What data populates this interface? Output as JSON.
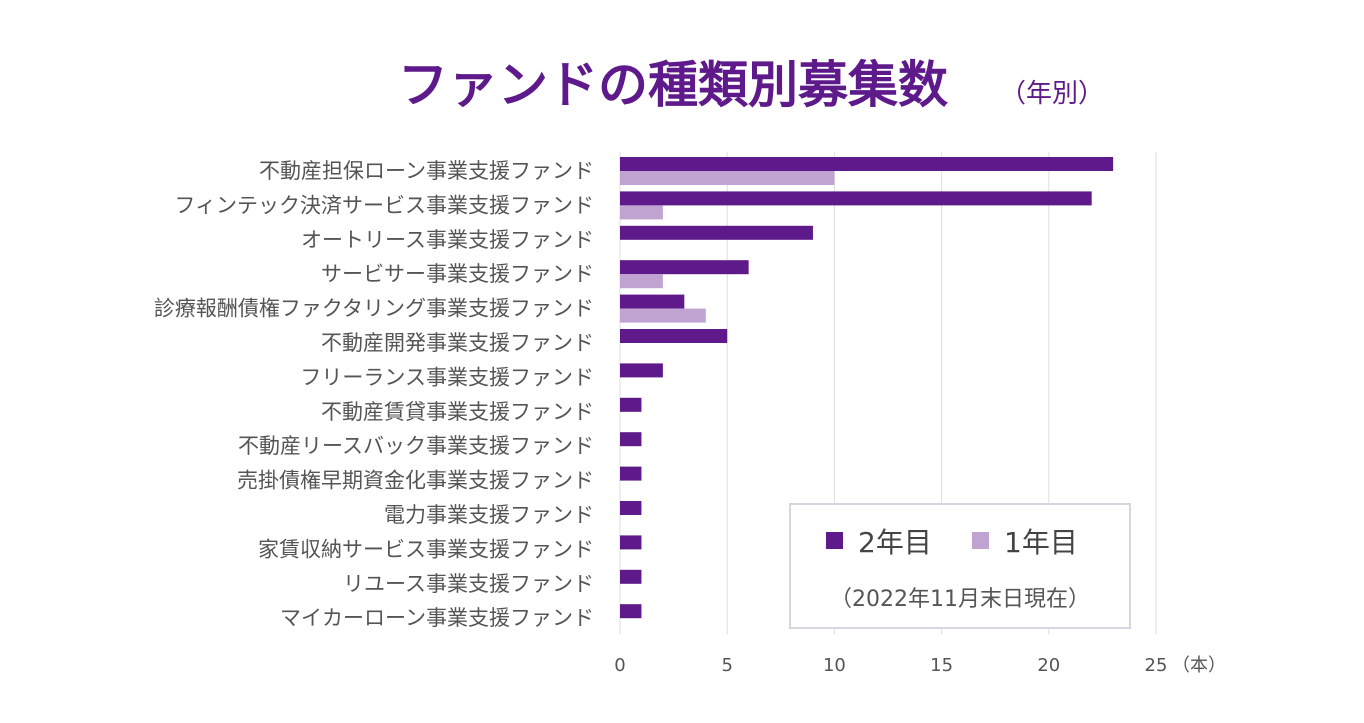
{
  "chart_data": {
    "type": "bar",
    "orientation": "horizontal",
    "title": "ファンドの種類別募集数",
    "subtitle": "（年別）",
    "categories": [
      "不動産担保ローン事業支援ファンド",
      "フィンテック決済サービス事業支援ファンド",
      "オートリース事業支援ファンド",
      "サービサー事業支援ファンド",
      "診療報酬債権ファクタリング事業支援ファンド",
      "不動産開発事業支援ファンド",
      "フリーランス事業支援ファンド",
      "不動産賃貸事業支援ファンド",
      "不動産リースバック事業支援ファンド",
      "売掛債権早期資金化事業支援ファンド",
      "電力事業支援ファンド",
      "家賃収納サービス事業支援ファンド",
      "リユース事業支援ファンド",
      "マイカーローン事業支援ファンド"
    ],
    "series": [
      {
        "name": "2年目",
        "color": "#5e1a8a",
        "values": [
          23,
          22,
          9,
          6,
          3,
          5,
          2,
          1,
          1,
          1,
          1,
          1,
          1,
          1
        ]
      },
      {
        "name": "1年目",
        "color": "#c0a3d1",
        "values": [
          10,
          2,
          0,
          2,
          4,
          0,
          0,
          0,
          0,
          0,
          0,
          0,
          0,
          0
        ]
      }
    ],
    "xlim": [
      0,
      25
    ],
    "xticks": [
      0,
      5,
      10,
      15,
      20,
      25
    ],
    "xunit": "（本）",
    "grid": true,
    "legend_position": "bottom-right",
    "note": "（2022年11月末日現在）",
    "title_color": "#5e1a8a"
  }
}
